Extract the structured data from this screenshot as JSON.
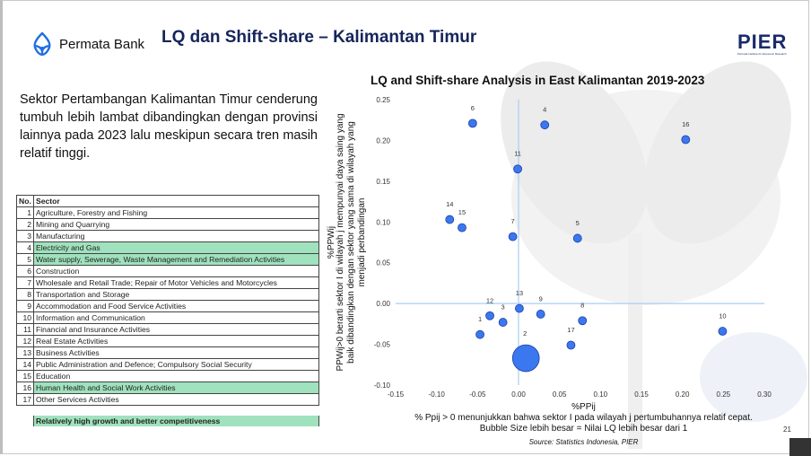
{
  "header": {
    "brand": "Permata Bank",
    "title": "LQ dan Shift-share – Kalimantan Timur",
    "partner_logo": "PIER",
    "partner_tagline": "Permata Institute for Economic Research"
  },
  "summary": "Sektor Pertambangan Kalimantan Timur cenderung tumbuh lebih lambat dibandingkan dengan provinsi lainnya pada 2023 lalu meskipun secara tren masih relatif tinggi.",
  "table": {
    "headers": [
      "No.",
      "Sector"
    ],
    "rows": [
      {
        "no": "1",
        "sector": "Agriculture, Forestry and Fishing",
        "highlight": false
      },
      {
        "no": "2",
        "sector": "Mining and Quarrying",
        "highlight": false
      },
      {
        "no": "3",
        "sector": "Manufacturing",
        "highlight": false
      },
      {
        "no": "4",
        "sector": "Electricity and Gas",
        "highlight": true
      },
      {
        "no": "5",
        "sector": "Water supply, Sewerage, Waste Management and Remediation Activities",
        "highlight": true
      },
      {
        "no": "6",
        "sector": "Construction",
        "highlight": false
      },
      {
        "no": "7",
        "sector": "Wholesale and Retail Trade; Repair of Motor Vehicles and Motorcycles",
        "highlight": false
      },
      {
        "no": "8",
        "sector": "Transportation and Storage",
        "highlight": false
      },
      {
        "no": "9",
        "sector": "Accommodation and Food Service Activities",
        "highlight": false
      },
      {
        "no": "10",
        "sector": "Information and Communication",
        "highlight": false
      },
      {
        "no": "11",
        "sector": "Financial and Insurance Activities",
        "highlight": false
      },
      {
        "no": "12",
        "sector": "Real Estate Activities",
        "highlight": false
      },
      {
        "no": "13",
        "sector": "Business Activities",
        "highlight": false
      },
      {
        "no": "14",
        "sector": "Public Administration and Defence; Compulsory Social Security",
        "highlight": false
      },
      {
        "no": "15",
        "sector": "Education",
        "highlight": false
      },
      {
        "no": "16",
        "sector": "Human Health and Social Work Activities",
        "highlight": true
      },
      {
        "no": "17",
        "sector": "Other Services Activities",
        "highlight": false
      }
    ],
    "legend": "Relatively high growth and better competitiveness",
    "highlight_color": "#9fe2bd"
  },
  "chart_data": {
    "type": "scatter",
    "title": "LQ and Shift-share Analysis in East Kalimantan 2019-2023",
    "xlabel": "%PPij",
    "xlabel_note": "% Ppij > 0 menunjukkan bahwa sektor I pada wilayah j pertumbuhannya relatif cepat.",
    "size_note": "Bubble Size lebih besar = Nilai LQ lebih besar dari 1",
    "ylabel": "%PPWij",
    "ylabel_note": [
      "PPWij>0 berarti  sektor I di wilayah j mempunyai daya saing yang",
      "baik dibandingkan dengan sektor yang sama di wilayah yang",
      "menjadi perbandingan"
    ],
    "xlim": [
      -0.15,
      0.3
    ],
    "ylim": [
      -0.1,
      0.25
    ],
    "xticks": [
      "-0.15",
      "-0.10",
      "-0.05",
      "0.00",
      "0.05",
      "0.10",
      "0.15",
      "0.20",
      "0.25",
      "0.30"
    ],
    "yticks": [
      "0.25",
      "0.20",
      "0.15",
      "0.10",
      "0.05",
      "0.00",
      "-0.05",
      "-0.10"
    ],
    "bubble_color": "#3b78f0",
    "points": [
      {
        "label": "1",
        "x": -0.047,
        "y": -0.038,
        "size": 1
      },
      {
        "label": "2",
        "x": 0.009,
        "y": -0.067,
        "size": 11
      },
      {
        "label": "3",
        "x": -0.019,
        "y": -0.023,
        "size": 1
      },
      {
        "label": "4",
        "x": 0.032,
        "y": 0.219,
        "size": 1
      },
      {
        "label": "5",
        "x": 0.072,
        "y": 0.08,
        "size": 1
      },
      {
        "label": "6",
        "x": -0.056,
        "y": 0.221,
        "size": 1
      },
      {
        "label": "7",
        "x": -0.007,
        "y": 0.082,
        "size": 1
      },
      {
        "label": "8",
        "x": 0.078,
        "y": -0.021,
        "size": 1
      },
      {
        "label": "9",
        "x": 0.027,
        "y": -0.013,
        "size": 1
      },
      {
        "label": "10",
        "x": 0.249,
        "y": -0.034,
        "size": 1
      },
      {
        "label": "11",
        "x": -0.001,
        "y": 0.165,
        "size": 1
      },
      {
        "label": "12",
        "x": -0.035,
        "y": -0.015,
        "size": 1
      },
      {
        "label": "13",
        "x": 0.001,
        "y": -0.006,
        "size": 1
      },
      {
        "label": "14",
        "x": -0.084,
        "y": 0.103,
        "size": 1
      },
      {
        "label": "15",
        "x": -0.069,
        "y": 0.093,
        "size": 1
      },
      {
        "label": "16",
        "x": 0.204,
        "y": 0.201,
        "size": 1
      },
      {
        "label": "17",
        "x": 0.064,
        "y": -0.051,
        "size": 1
      }
    ],
    "source": "Source: Statistics Indonesia, PIER"
  },
  "page_number": "21"
}
